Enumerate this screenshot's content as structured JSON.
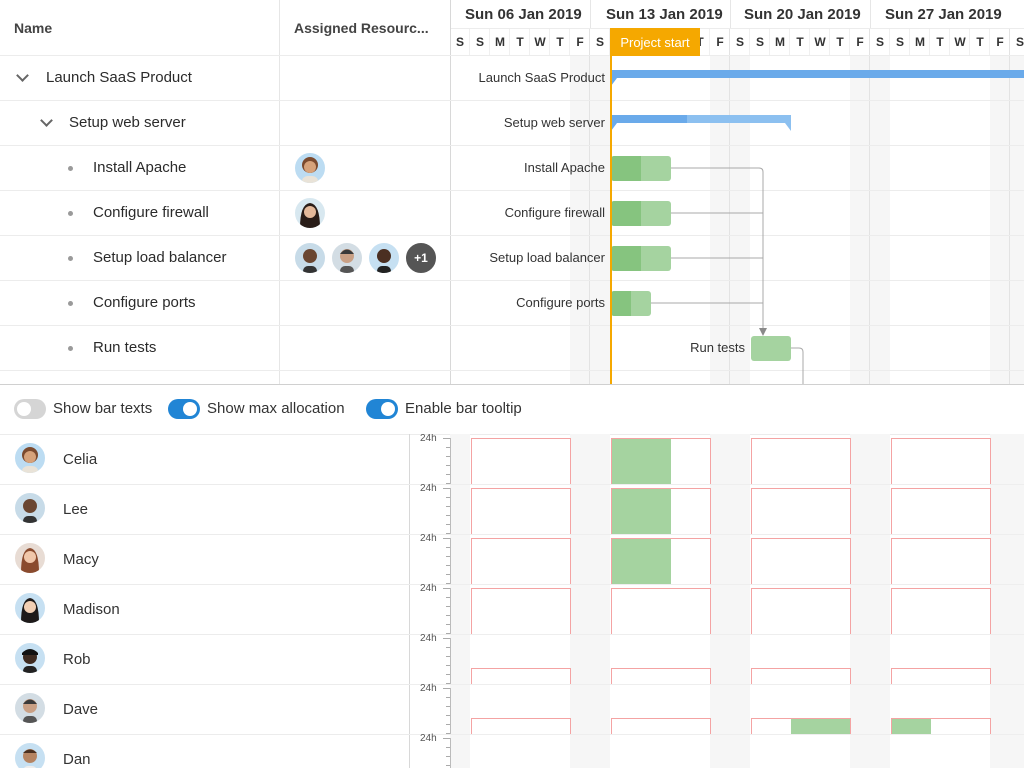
{
  "columns": {
    "name": "Name",
    "resources": "Assigned Resourc..."
  },
  "weeks": [
    "Sun 06 Jan 2019",
    "Sun 13 Jan 2019",
    "Sun 20 Jan 2019",
    "Sun 27 Jan 2019"
  ],
  "day_letters": [
    "S",
    "M",
    "T",
    "W",
    "T",
    "F",
    "S"
  ],
  "project_start_label": "Project start",
  "tasks": [
    {
      "name": "Launch SaaS Product",
      "level": 0,
      "expandable": true,
      "label": "Launch SaaS Product"
    },
    {
      "name": "Setup web server",
      "level": 1,
      "expandable": true,
      "label": "Setup web server"
    },
    {
      "name": "Install Apache",
      "level": 2,
      "expandable": false,
      "label": "Install Apache"
    },
    {
      "name": "Configure firewall",
      "level": 2,
      "expandable": false,
      "label": "Configure firewall"
    },
    {
      "name": "Setup load balancer",
      "level": 2,
      "expandable": false,
      "label": "Setup load balancer",
      "extra_resources": "+1"
    },
    {
      "name": "Configure ports",
      "level": 2,
      "expandable": false,
      "label": "Configure ports"
    },
    {
      "name": "Run tests",
      "level": 2,
      "expandable": false,
      "label": "Run tests"
    }
  ],
  "toggles": [
    {
      "label": "Show bar texts",
      "on": false
    },
    {
      "label": "Show max allocation",
      "on": true
    },
    {
      "label": "Enable bar tooltip",
      "on": true
    }
  ],
  "resources": [
    {
      "name": "Celia"
    },
    {
      "name": "Lee"
    },
    {
      "name": "Macy"
    },
    {
      "name": "Madison"
    },
    {
      "name": "Rob"
    },
    {
      "name": "Dave"
    },
    {
      "name": "Dan"
    }
  ],
  "histogram_axis_label": "24h",
  "colors": {
    "accent": "#2185d5",
    "summary_bar": "#6aaaea",
    "task_bar": "#a5d3a0",
    "task_bar_done": "#86c47f",
    "project_start": "#f5a800",
    "max_allocation": "#f4a3a3",
    "weekend": "#f6f6f6"
  }
}
